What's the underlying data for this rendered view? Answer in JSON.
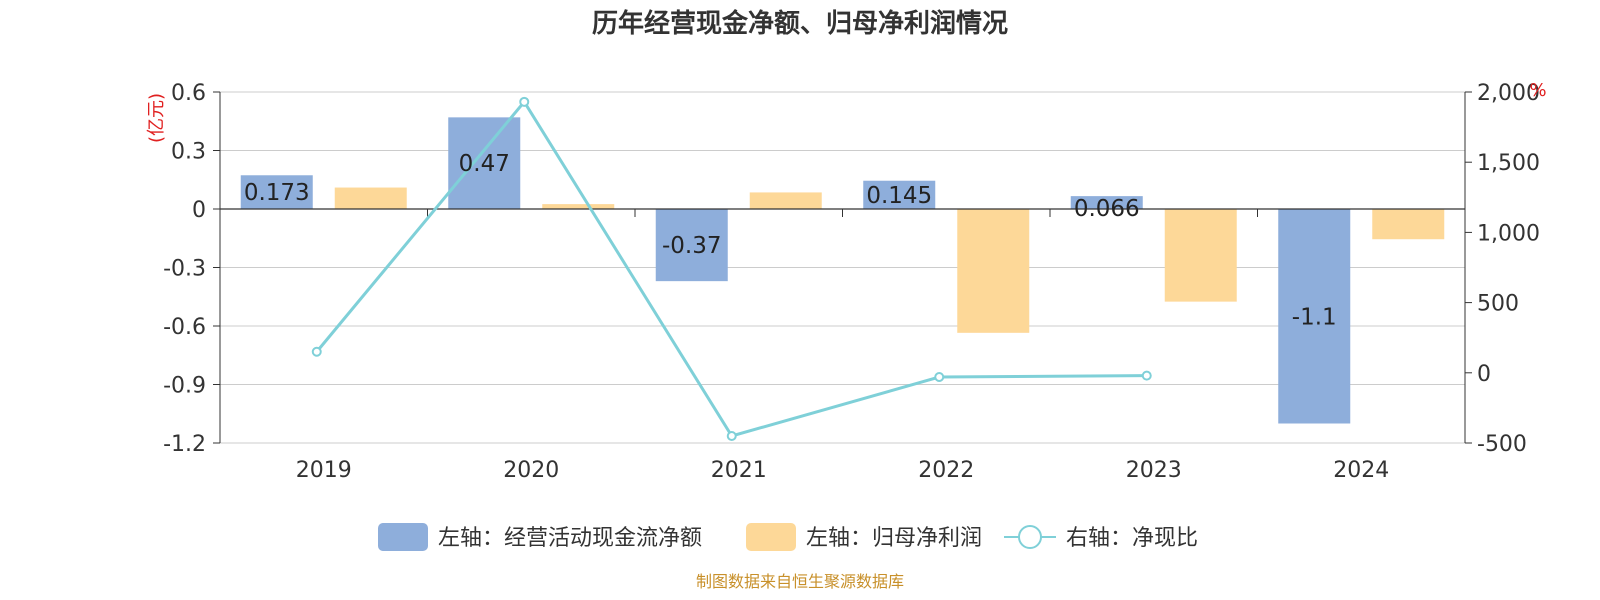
{
  "title": "历年经营现金净额、归母净利润情况",
  "source": "制图数据来自恒生聚源数据库",
  "chart_data": {
    "type": "bar",
    "categories": [
      "2019",
      "2020",
      "2021",
      "2022",
      "2023",
      "2024"
    ],
    "left_axis": {
      "unit": "(亿元)",
      "ylim": [
        -1.2,
        0.6
      ],
      "ticks": [
        0.6,
        0.3,
        0,
        -0.3,
        -0.6,
        -0.9,
        -1.2
      ],
      "tick_labels": [
        "0.6",
        "0.3",
        "0",
        "-0.3",
        "-0.6",
        "-0.9",
        "-1.2"
      ]
    },
    "right_axis": {
      "unit": "%",
      "ylim": [
        -500,
        2000
      ],
      "ticks": [
        2000,
        1500,
        1000,
        500,
        0,
        -500
      ],
      "tick_labels": [
        "2,000",
        "1,500",
        "1,000",
        "500",
        "0",
        "-500"
      ]
    },
    "series": [
      {
        "name": "左轴：经营活动现金流净额",
        "type": "bar",
        "axis": "left",
        "color": "#8eaedb",
        "values": [
          0.173,
          0.47,
          -0.37,
          0.145,
          0.066,
          -1.1
        ],
        "labels": [
          "0.173",
          "0.47",
          "-0.37",
          "0.145",
          "0.066",
          "-1.1"
        ]
      },
      {
        "name": "左轴：归母净利润",
        "type": "bar",
        "axis": "left",
        "color": "#fdd898",
        "values": [
          0.11,
          0.025,
          0.085,
          -0.635,
          -0.475,
          -0.155
        ]
      },
      {
        "name": "右轴：净现比",
        "type": "line",
        "axis": "right",
        "color": "#7fd0d8",
        "values": [
          150,
          1930,
          -450,
          -30,
          -20,
          null
        ]
      }
    ],
    "grid": true,
    "legend_position": "bottom"
  }
}
